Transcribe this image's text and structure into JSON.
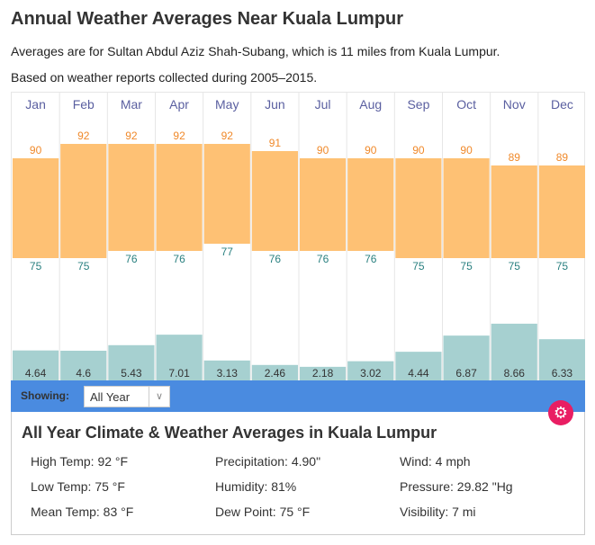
{
  "title": "Annual Weather Averages Near Kuala Lumpur",
  "subtitle1": "Averages are for Sultan Abdul Aziz Shah-Subang, which is 11 miles from Kuala Lumpur.",
  "subtitle2": "Based on weather reports collected during 2005–2015.",
  "colors": {
    "high": "#fec174",
    "high_text": "#f0892a",
    "low_text": "#2a8080",
    "precip": "#a6d0d0",
    "bar": "#4a8be0",
    "gear": "#e91e63",
    "month": "#5a5fa0"
  },
  "chart_data": {
    "type": "bar",
    "categories": [
      "Jan",
      "Feb",
      "Mar",
      "Apr",
      "May",
      "Jun",
      "Jul",
      "Aug",
      "Sep",
      "Oct",
      "Nov",
      "Dec"
    ],
    "series": [
      {
        "name": "High Temp (°F)",
        "values": [
          90,
          92,
          92,
          92,
          92,
          91,
          90,
          90,
          90,
          90,
          89,
          89
        ]
      },
      {
        "name": "Low Temp (°F)",
        "values": [
          75,
          75,
          76,
          76,
          77,
          76,
          76,
          76,
          75,
          75,
          75,
          75
        ]
      },
      {
        "name": "Precipitation (in)",
        "values": [
          4.64,
          4.6,
          5.43,
          7.01,
          3.13,
          2.46,
          2.18,
          3.02,
          4.44,
          6.87,
          8.66,
          6.33
        ]
      }
    ]
  },
  "showing": {
    "label": "Showing:",
    "value": "All Year"
  },
  "info": {
    "title": "All Year Climate & Weather Averages in Kuala Lumpur",
    "stats": [
      [
        "High Temp: 92 °F",
        "Precipitation: 4.90\"",
        "Wind: 4 mph"
      ],
      [
        "Low Temp: 75 °F",
        "Humidity: 81%",
        "Pressure: 29.82 \"Hg"
      ],
      [
        "Mean Temp: 83 °F",
        "Dew Point: 75 °F",
        "Visibility: 7 mi"
      ]
    ]
  }
}
